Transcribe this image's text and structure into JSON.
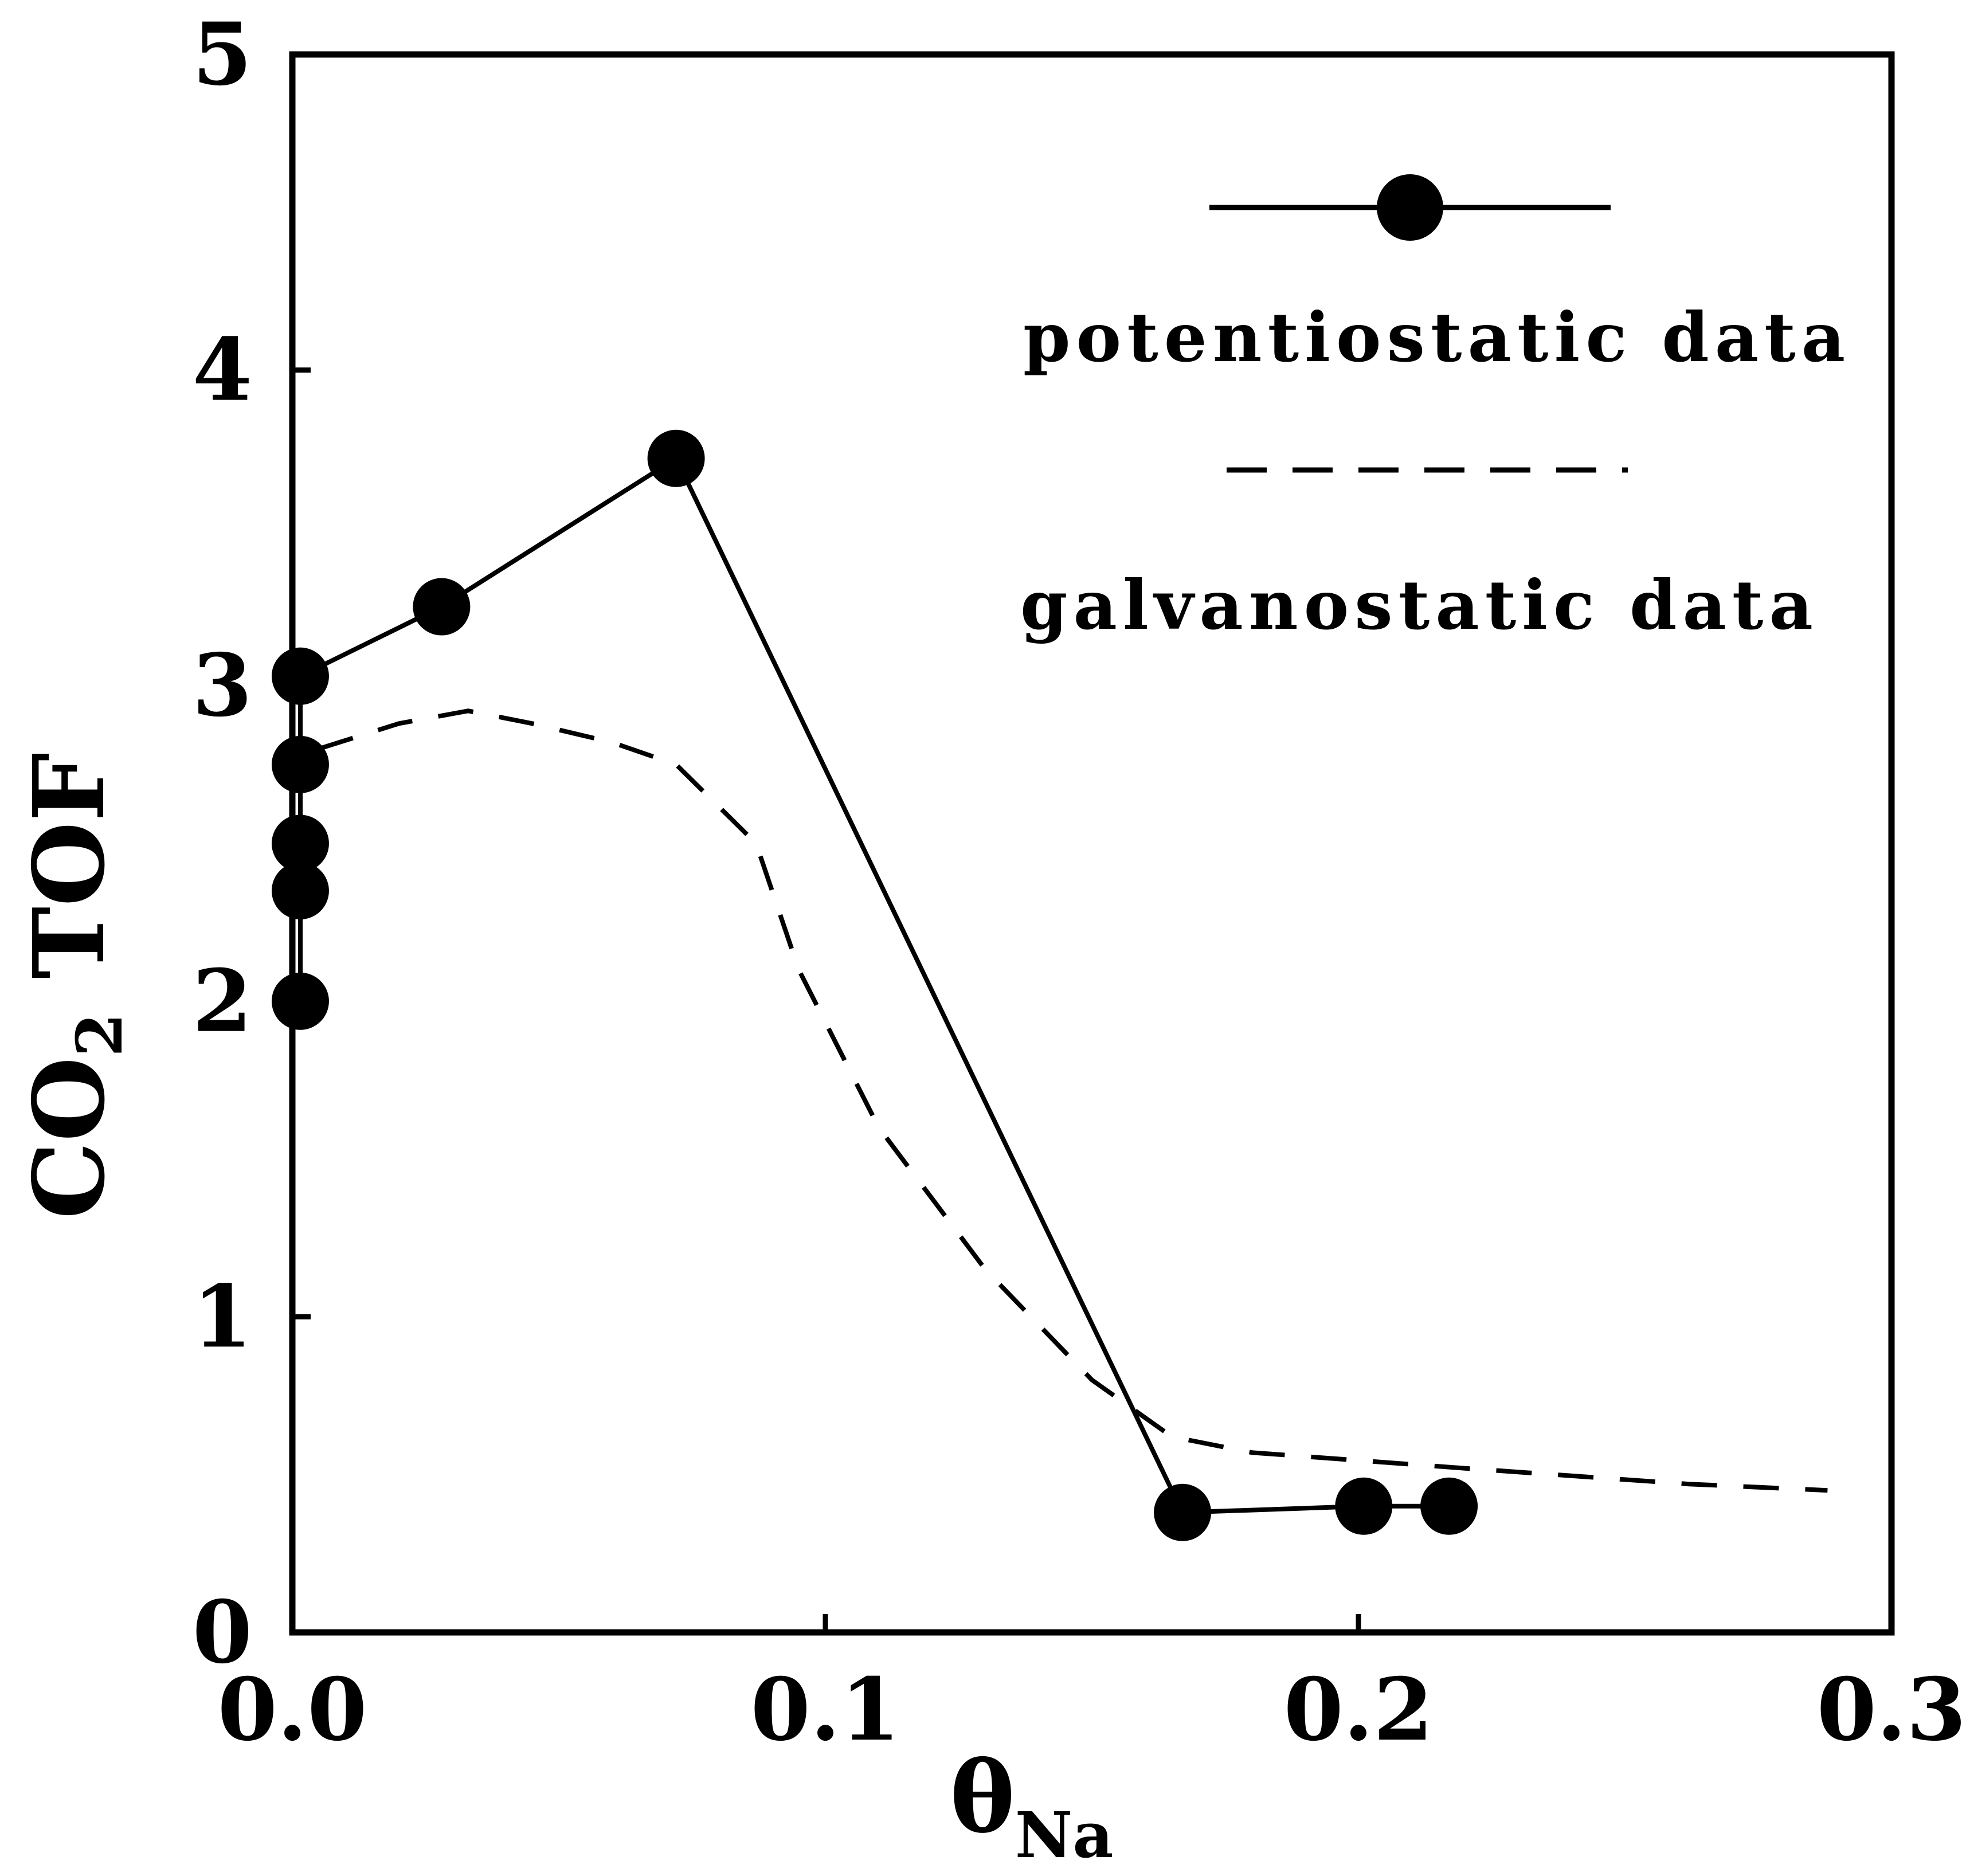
{
  "chart_data": {
    "type": "line",
    "title": "",
    "xlabel": {
      "main": "θ",
      "sub": "Na"
    },
    "ylabel": {
      "main": "CO",
      "sub": "2",
      "rest": " TOF"
    },
    "xlim": [
      0.0,
      0.3
    ],
    "ylim": [
      0,
      5
    ],
    "xticks": [
      0.0,
      0.1,
      0.2,
      0.3
    ],
    "xtick_labels": [
      "0.0",
      "0.1",
      "0.2",
      "0.3"
    ],
    "yticks": [
      0,
      1,
      2,
      3,
      4,
      5
    ],
    "ytick_labels": [
      "0",
      "1",
      "2",
      "3",
      "4",
      "5"
    ],
    "grid": false,
    "legend_position": "top-right",
    "series": [
      {
        "name": "potentiostatic data",
        "style": "solid",
        "marker": "filled-circle",
        "color": "#000000",
        "x": [
          0.0015,
          0.0015,
          0.0015,
          0.0015,
          0.0015,
          0.028,
          0.072,
          0.167,
          0.201,
          0.217
        ],
        "y": [
          2.0,
          2.35,
          2.5,
          2.75,
          3.03,
          3.25,
          3.72,
          0.38,
          0.4,
          0.4
        ],
        "path_order": [
          0,
          1,
          2,
          3,
          4,
          5,
          6,
          7,
          8,
          9
        ]
      },
      {
        "name": "galvanostatic data",
        "style": "dashed",
        "marker": "none",
        "color": "#000000",
        "x": [
          0.005,
          0.02,
          0.033,
          0.045,
          0.06,
          0.072,
          0.078,
          0.087,
          0.095,
          0.11,
          0.13,
          0.15,
          0.165,
          0.18,
          0.22,
          0.262,
          0.288
        ],
        "y": [
          2.8,
          2.88,
          2.92,
          2.88,
          2.82,
          2.75,
          2.65,
          2.5,
          2.1,
          1.6,
          1.15,
          0.8,
          0.62,
          0.57,
          0.52,
          0.47,
          0.45
        ]
      }
    ]
  }
}
